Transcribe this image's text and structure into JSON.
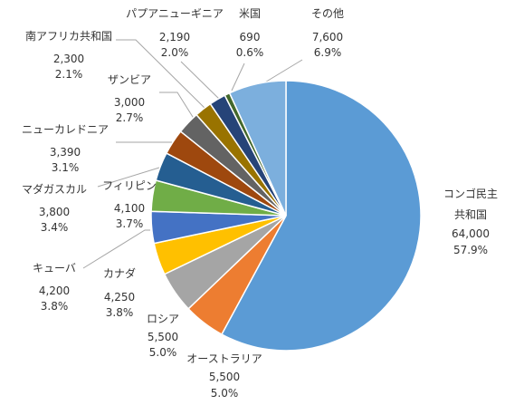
{
  "chart_data": {
    "type": "pie",
    "title": "",
    "slices": [
      {
        "label": "コンゴ民主共和国",
        "value": 64000,
        "value_text": "64,000",
        "pct_text": "57.9%",
        "color": "#5B9BD5"
      },
      {
        "label": "オーストラリア",
        "value": 5500,
        "value_text": "5,500",
        "pct_text": "5.0%",
        "color": "#ED7D31"
      },
      {
        "label": "ロシア",
        "value": 5500,
        "value_text": "5,500",
        "pct_text": "5.0%",
        "color": "#A5A5A5"
      },
      {
        "label": "カナダ",
        "value": 4250,
        "value_text": "4,250",
        "pct_text": "3.8%",
        "color": "#FFC000"
      },
      {
        "label": "キューバ",
        "value": 4200,
        "value_text": "4,200",
        "pct_text": "3.8%",
        "color": "#4472C4"
      },
      {
        "label": "フィリピン",
        "value": 4100,
        "value_text": "4,100",
        "pct_text": "3.7%",
        "color": "#70AD47"
      },
      {
        "label": "マダガスカル",
        "value": 3800,
        "value_text": "3,800",
        "pct_text": "3.4%",
        "color": "#255E91"
      },
      {
        "label": "ニューカレドニア",
        "value": 3390,
        "value_text": "3,390",
        "pct_text": "3.1%",
        "color": "#9E480E"
      },
      {
        "label": "ザンビア",
        "value": 3000,
        "value_text": "3,000",
        "pct_text": "2.7%",
        "color": "#636363"
      },
      {
        "label": "南アフリカ共和国",
        "value": 2300,
        "value_text": "2,300",
        "pct_text": "2.1%",
        "color": "#997300"
      },
      {
        "label": "パプアニューギニア",
        "value": 2190,
        "value_text": "2,190",
        "pct_text": "2.0%",
        "color": "#264478"
      },
      {
        "label": "米国",
        "value": 690,
        "value_text": "690",
        "pct_text": "0.6%",
        "color": "#43682B"
      },
      {
        "label": "その他",
        "value": 7600,
        "value_text": "7,600",
        "pct_text": "6.9%",
        "color": "#7CAFDD"
      }
    ]
  }
}
